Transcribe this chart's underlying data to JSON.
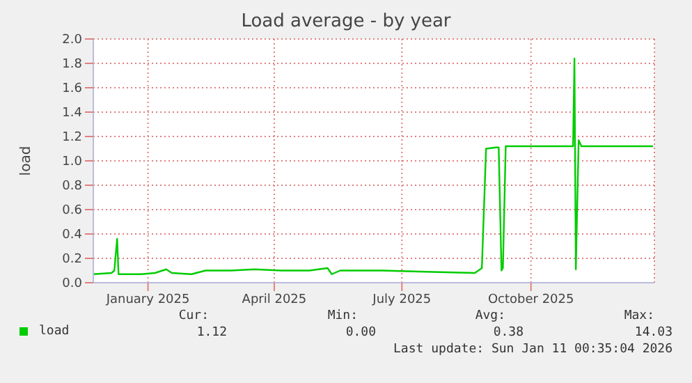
{
  "chart_data": {
    "type": "line",
    "title": "Load average - by year",
    "ylabel": "load",
    "x": [
      "2024-12-07",
      "2024-12-20",
      "2024-12-22",
      "2024-12-24",
      "2024-12-25",
      "2025-01-10",
      "2025-01-20",
      "2025-01-28",
      "2025-02-01",
      "2025-02-15",
      "2025-02-25",
      "2025-03-15",
      "2025-04-01",
      "2025-04-20",
      "2025-05-10",
      "2025-05-23",
      "2025-05-26",
      "2025-06-01",
      "2025-07-01",
      "2025-08-01",
      "2025-09-05",
      "2025-09-10",
      "2025-09-13",
      "2025-09-20",
      "2025-09-22",
      "2025-09-24",
      "2025-09-25",
      "2025-09-27",
      "2025-10-15",
      "2025-11-14",
      "2025-11-15",
      "2025-11-16",
      "2025-11-18",
      "2025-11-20",
      "2025-12-15",
      "2026-01-10"
    ],
    "series": [
      {
        "name": "load",
        "color": "#00cc00",
        "values": [
          0.07,
          0.08,
          0.1,
          0.36,
          0.07,
          0.07,
          0.08,
          0.11,
          0.08,
          0.07,
          0.1,
          0.1,
          0.11,
          0.1,
          0.1,
          0.12,
          0.07,
          0.1,
          0.1,
          0.09,
          0.08,
          0.12,
          1.1,
          1.11,
          1.11,
          0.1,
          0.12,
          1.12,
          1.12,
          1.12,
          1.84,
          0.11,
          1.17,
          1.12,
          1.12,
          1.12
        ]
      }
    ],
    "xlim": [
      "2024-12-07",
      "2026-01-11"
    ],
    "xticks": [
      {
        "value": "2025-01-15",
        "label": "January 2025"
      },
      {
        "value": "2025-04-15",
        "label": "April 2025"
      },
      {
        "value": "2025-07-15",
        "label": "July 2025"
      },
      {
        "value": "2025-10-15",
        "label": "October 2025"
      }
    ],
    "ylim": [
      0,
      2
    ],
    "yticks": [
      {
        "value": 0,
        "label": "0.0"
      },
      {
        "value": 0.2,
        "label": "0.2"
      },
      {
        "value": 0.4,
        "label": "0.4"
      },
      {
        "value": 0.6,
        "label": "0.6"
      },
      {
        "value": 0.8,
        "label": "0.8"
      },
      {
        "value": 1,
        "label": "1.0"
      },
      {
        "value": 1.2,
        "label": "1.2"
      },
      {
        "value": 1.4,
        "label": "1.4"
      },
      {
        "value": 1.6,
        "label": "1.6"
      },
      {
        "value": 1.8,
        "label": "1.8"
      },
      {
        "value": 2,
        "label": "2.0"
      }
    ],
    "grid": true,
    "legend": "bottom left",
    "annotations": [
      "Cur:",
      "Min:",
      "Avg:",
      "Max:",
      "1.12",
      "0.00",
      "0.38",
      "14.03",
      "Last update: Sun Jan 11 00:35:04 2026"
    ]
  }
}
